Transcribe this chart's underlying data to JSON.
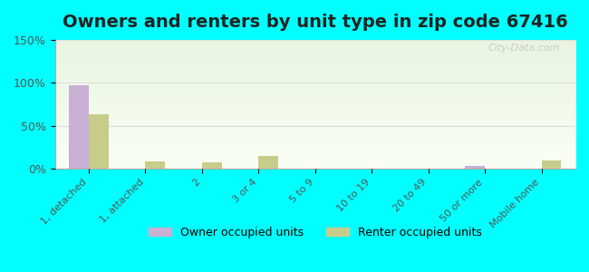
{
  "title": "Owners and renters by unit type in zip code 67416",
  "categories": [
    "1, detached",
    "1, attached",
    "2",
    "3 or 4",
    "5 to 9",
    "10 to 19",
    "20 to 49",
    "50 or more",
    "Mobile home"
  ],
  "owner_values": [
    97,
    0,
    0,
    0,
    0,
    0,
    0,
    3,
    0
  ],
  "renter_values": [
    63,
    8,
    7,
    15,
    0,
    0,
    0,
    0,
    10
  ],
  "owner_color": "#c9afd4",
  "renter_color": "#c8cc8a",
  "ylim": [
    0,
    150
  ],
  "yticks": [
    0,
    50,
    100,
    150
  ],
  "ytick_labels": [
    "0%",
    "50%",
    "100%",
    "150%"
  ],
  "background_color": "#00ffff",
  "title_fontsize": 14,
  "legend_owner": "Owner occupied units",
  "legend_renter": "Renter occupied units",
  "watermark": "City-Data.com"
}
